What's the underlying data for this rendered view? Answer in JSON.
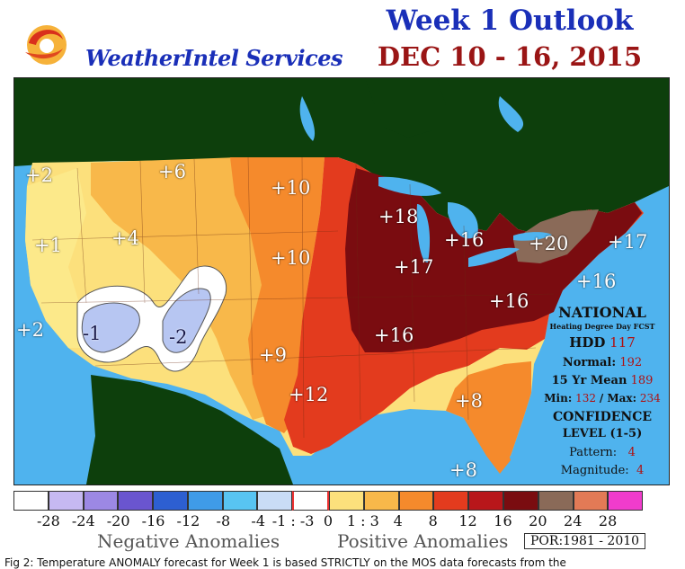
{
  "header": {
    "brand": "WeatherIntel Services",
    "title_line1": "Week 1 Outlook",
    "title_line2": "DEC 10 - 16, 2015"
  },
  "map": {
    "anomalies": [
      "+2",
      "+6",
      "+10",
      "+1",
      "+4",
      "+10",
      "+18",
      "+16",
      "+17",
      "+20",
      "+17",
      "+16",
      "+16",
      "+2",
      "-1",
      "-2",
      "+9",
      "+16",
      "+12",
      "+8",
      "+8"
    ]
  },
  "stats": {
    "heading": "NATIONAL",
    "subheading": "Heating Degree Day FCST",
    "hdd_label": "HDD",
    "hdd_value": "117",
    "normal_label": "Normal:",
    "normal_value": "192",
    "mean_label": "15 Yr Mean",
    "mean_value": "189",
    "min_label": "Min:",
    "min_value": "132",
    "max_label": "/ Max:",
    "max_value": "234",
    "confidence_label": "CONFIDENCE",
    "level_label": "LEVEL (1-5)",
    "pattern_label": "Pattern:",
    "pattern_value": "4",
    "magnitude_label": "Magnitude:",
    "magnitude_value": "4"
  },
  "legend": {
    "colors": [
      "#ffffff",
      "#c6b9f2",
      "#9c88e4",
      "#6a55cf",
      "#2d5fd1",
      "#3f9be8",
      "#58c4f2",
      "#c9dcf6",
      "#ffffff",
      "#fce07c",
      "#f8b84a",
      "#f58a2c",
      "#e33b1e",
      "#b8161a",
      "#7a0c10",
      "#8a6a58",
      "#e27a56",
      "#f03ccc"
    ],
    "ticks": [
      "-28",
      "-24",
      "-20",
      "-16",
      "-12",
      "-8",
      "-4",
      "-1 : -3",
      "0",
      "1 : 3",
      "4",
      "8",
      "12",
      "16",
      "20",
      "24",
      "28"
    ],
    "negative_label": "Negative Anomalies",
    "positive_label": "Positive Anomalies",
    "por": "POR:1981 - 2010"
  },
  "caption": "Fig 2: Temperature ANOMALY forecast for Week 1 is based STRICTLY on the MOS data forecasts from the"
}
